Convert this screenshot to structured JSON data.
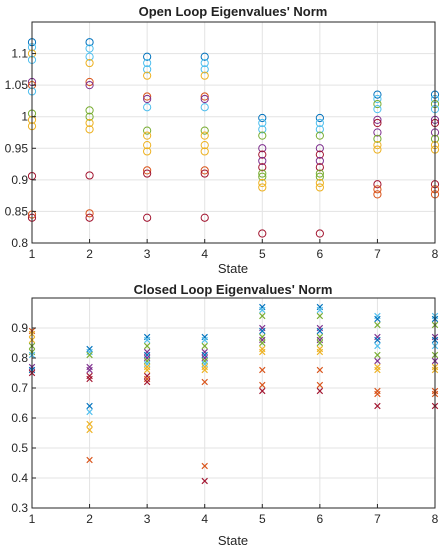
{
  "colors": {
    "blue": "#0072bd",
    "orange": "#d95319",
    "yellow": "#edb120",
    "purple": "#7e2f8e",
    "green": "#77ac30",
    "cyan": "#4dbeee",
    "red": "#a2142f",
    "grid": "#e3e3e3",
    "axis": "#262626"
  },
  "chart_data": [
    {
      "type": "scatter",
      "title": "Open Loop Eigenvalues' Norm",
      "xlabel": "State",
      "ylabel": "",
      "xlim": [
        1,
        8
      ],
      "ylim": [
        0.8,
        1.15
      ],
      "x_ticks": [
        1,
        2,
        3,
        4,
        5,
        6,
        7,
        8
      ],
      "x_tick_labels": [
        "1",
        "2",
        "3",
        "4",
        "5",
        "6",
        "7",
        "8"
      ],
      "y_ticks": [
        0.8,
        0.85,
        0.9,
        0.95,
        1,
        1.05,
        1.1
      ],
      "y_tick_labels": [
        "0.8",
        "0.85",
        "0.9",
        "0.95",
        "1",
        "1.05",
        "1.1"
      ],
      "grid": true,
      "marker": "circle",
      "points": [
        {
          "x": 1,
          "y": 1.118,
          "c": "blue"
        },
        {
          "x": 1,
          "y": 1.11,
          "c": "cyan"
        },
        {
          "x": 1,
          "y": 1.1,
          "c": "yellow"
        },
        {
          "x": 1,
          "y": 1.09,
          "c": "cyan"
        },
        {
          "x": 1,
          "y": 1.055,
          "c": "purple"
        },
        {
          "x": 1,
          "y": 1.05,
          "c": "orange"
        },
        {
          "x": 1,
          "y": 1.04,
          "c": "cyan"
        },
        {
          "x": 1,
          "y": 1.005,
          "c": "green"
        },
        {
          "x": 1,
          "y": 0.995,
          "c": "yellow"
        },
        {
          "x": 1,
          "y": 0.985,
          "c": "yellow"
        },
        {
          "x": 1,
          "y": 0.906,
          "c": "red"
        },
        {
          "x": 1,
          "y": 0.845,
          "c": "orange"
        },
        {
          "x": 1,
          "y": 0.84,
          "c": "red"
        },
        {
          "x": 2,
          "y": 1.118,
          "c": "blue"
        },
        {
          "x": 2,
          "y": 1.108,
          "c": "cyan"
        },
        {
          "x": 2,
          "y": 1.095,
          "c": "cyan"
        },
        {
          "x": 2,
          "y": 1.085,
          "c": "yellow"
        },
        {
          "x": 2,
          "y": 1.055,
          "c": "orange"
        },
        {
          "x": 2,
          "y": 1.05,
          "c": "purple"
        },
        {
          "x": 2,
          "y": 1.01,
          "c": "green"
        },
        {
          "x": 2,
          "y": 1.0,
          "c": "green"
        },
        {
          "x": 2,
          "y": 0.99,
          "c": "yellow"
        },
        {
          "x": 2,
          "y": 0.98,
          "c": "yellow"
        },
        {
          "x": 2,
          "y": 0.907,
          "c": "red"
        },
        {
          "x": 2,
          "y": 0.847,
          "c": "orange"
        },
        {
          "x": 2,
          "y": 0.84,
          "c": "red"
        },
        {
          "x": 3,
          "y": 1.095,
          "c": "blue"
        },
        {
          "x": 3,
          "y": 1.085,
          "c": "cyan"
        },
        {
          "x": 3,
          "y": 1.075,
          "c": "cyan"
        },
        {
          "x": 3,
          "y": 1.065,
          "c": "yellow"
        },
        {
          "x": 3,
          "y": 1.032,
          "c": "orange"
        },
        {
          "x": 3,
          "y": 1.028,
          "c": "purple"
        },
        {
          "x": 3,
          "y": 1.015,
          "c": "cyan"
        },
        {
          "x": 3,
          "y": 0.978,
          "c": "green"
        },
        {
          "x": 3,
          "y": 0.97,
          "c": "yellow"
        },
        {
          "x": 3,
          "y": 0.955,
          "c": "yellow"
        },
        {
          "x": 3,
          "y": 0.945,
          "c": "yellow"
        },
        {
          "x": 3,
          "y": 0.915,
          "c": "orange"
        },
        {
          "x": 3,
          "y": 0.91,
          "c": "red"
        },
        {
          "x": 3,
          "y": 0.84,
          "c": "red"
        },
        {
          "x": 4,
          "y": 1.095,
          "c": "blue"
        },
        {
          "x": 4,
          "y": 1.085,
          "c": "cyan"
        },
        {
          "x": 4,
          "y": 1.075,
          "c": "cyan"
        },
        {
          "x": 4,
          "y": 1.065,
          "c": "yellow"
        },
        {
          "x": 4,
          "y": 1.032,
          "c": "orange"
        },
        {
          "x": 4,
          "y": 1.028,
          "c": "purple"
        },
        {
          "x": 4,
          "y": 1.015,
          "c": "cyan"
        },
        {
          "x": 4,
          "y": 0.978,
          "c": "green"
        },
        {
          "x": 4,
          "y": 0.97,
          "c": "yellow"
        },
        {
          "x": 4,
          "y": 0.955,
          "c": "yellow"
        },
        {
          "x": 4,
          "y": 0.945,
          "c": "yellow"
        },
        {
          "x": 4,
          "y": 0.915,
          "c": "orange"
        },
        {
          "x": 4,
          "y": 0.91,
          "c": "red"
        },
        {
          "x": 4,
          "y": 0.84,
          "c": "red"
        },
        {
          "x": 5,
          "y": 0.998,
          "c": "blue"
        },
        {
          "x": 5,
          "y": 0.99,
          "c": "cyan"
        },
        {
          "x": 5,
          "y": 0.98,
          "c": "cyan"
        },
        {
          "x": 5,
          "y": 0.97,
          "c": "green"
        },
        {
          "x": 5,
          "y": 0.95,
          "c": "purple"
        },
        {
          "x": 5,
          "y": 0.94,
          "c": "red"
        },
        {
          "x": 5,
          "y": 0.93,
          "c": "purple"
        },
        {
          "x": 5,
          "y": 0.92,
          "c": "red"
        },
        {
          "x": 5,
          "y": 0.91,
          "c": "green"
        },
        {
          "x": 5,
          "y": 0.905,
          "c": "green"
        },
        {
          "x": 5,
          "y": 0.895,
          "c": "yellow"
        },
        {
          "x": 5,
          "y": 0.888,
          "c": "yellow"
        },
        {
          "x": 5,
          "y": 0.815,
          "c": "red"
        },
        {
          "x": 6,
          "y": 0.998,
          "c": "blue"
        },
        {
          "x": 6,
          "y": 0.99,
          "c": "cyan"
        },
        {
          "x": 6,
          "y": 0.98,
          "c": "cyan"
        },
        {
          "x": 6,
          "y": 0.97,
          "c": "green"
        },
        {
          "x": 6,
          "y": 0.95,
          "c": "purple"
        },
        {
          "x": 6,
          "y": 0.94,
          "c": "red"
        },
        {
          "x": 6,
          "y": 0.93,
          "c": "purple"
        },
        {
          "x": 6,
          "y": 0.92,
          "c": "red"
        },
        {
          "x": 6,
          "y": 0.91,
          "c": "green"
        },
        {
          "x": 6,
          "y": 0.905,
          "c": "green"
        },
        {
          "x": 6,
          "y": 0.895,
          "c": "yellow"
        },
        {
          "x": 6,
          "y": 0.888,
          "c": "yellow"
        },
        {
          "x": 6,
          "y": 0.815,
          "c": "red"
        },
        {
          "x": 7,
          "y": 1.035,
          "c": "blue"
        },
        {
          "x": 7,
          "y": 1.028,
          "c": "cyan"
        },
        {
          "x": 7,
          "y": 1.02,
          "c": "green"
        },
        {
          "x": 7,
          "y": 1.012,
          "c": "cyan"
        },
        {
          "x": 7,
          "y": 0.995,
          "c": "purple"
        },
        {
          "x": 7,
          "y": 0.99,
          "c": "red"
        },
        {
          "x": 7,
          "y": 0.975,
          "c": "purple"
        },
        {
          "x": 7,
          "y": 0.965,
          "c": "green"
        },
        {
          "x": 7,
          "y": 0.955,
          "c": "yellow"
        },
        {
          "x": 7,
          "y": 0.948,
          "c": "yellow"
        },
        {
          "x": 7,
          "y": 0.893,
          "c": "red"
        },
        {
          "x": 7,
          "y": 0.885,
          "c": "orange"
        },
        {
          "x": 7,
          "y": 0.877,
          "c": "orange"
        },
        {
          "x": 8,
          "y": 1.035,
          "c": "blue"
        },
        {
          "x": 8,
          "y": 1.028,
          "c": "cyan"
        },
        {
          "x": 8,
          "y": 1.02,
          "c": "green"
        },
        {
          "x": 8,
          "y": 1.012,
          "c": "cyan"
        },
        {
          "x": 8,
          "y": 0.995,
          "c": "purple"
        },
        {
          "x": 8,
          "y": 0.99,
          "c": "red"
        },
        {
          "x": 8,
          "y": 0.975,
          "c": "purple"
        },
        {
          "x": 8,
          "y": 0.965,
          "c": "green"
        },
        {
          "x": 8,
          "y": 0.955,
          "c": "yellow"
        },
        {
          "x": 8,
          "y": 0.948,
          "c": "yellow"
        },
        {
          "x": 8,
          "y": 0.893,
          "c": "red"
        },
        {
          "x": 8,
          "y": 0.885,
          "c": "orange"
        },
        {
          "x": 8,
          "y": 0.877,
          "c": "orange"
        }
      ]
    },
    {
      "type": "scatter",
      "title": "Closed Loop Eigenvalues' Norm",
      "xlabel": "State",
      "ylabel": "",
      "xlim": [
        1,
        8
      ],
      "ylim": [
        0.3,
        1.0
      ],
      "x_ticks": [
        1,
        2,
        3,
        4,
        5,
        6,
        7,
        8
      ],
      "x_tick_labels": [
        "1",
        "2",
        "3",
        "4",
        "5",
        "6",
        "7",
        "8"
      ],
      "y_ticks": [
        0.3,
        0.4,
        0.5,
        0.6,
        0.7,
        0.8,
        0.9
      ],
      "y_tick_labels": [
        "0.3",
        "0.4",
        "0.5",
        "0.6",
        "0.7",
        "0.8",
        "0.9"
      ],
      "grid": true,
      "marker": "x",
      "points": [
        {
          "x": 1,
          "y": 0.89,
          "c": "orange"
        },
        {
          "x": 1,
          "y": 0.88,
          "c": "yellow"
        },
        {
          "x": 1,
          "y": 0.86,
          "c": "yellow"
        },
        {
          "x": 1,
          "y": 0.84,
          "c": "green"
        },
        {
          "x": 1,
          "y": 0.82,
          "c": "green"
        },
        {
          "x": 1,
          "y": 0.81,
          "c": "cyan"
        },
        {
          "x": 1,
          "y": 0.77,
          "c": "purple"
        },
        {
          "x": 1,
          "y": 0.76,
          "c": "blue"
        },
        {
          "x": 1,
          "y": 0.75,
          "c": "red"
        },
        {
          "x": 2,
          "y": 0.83,
          "c": "blue"
        },
        {
          "x": 2,
          "y": 0.82,
          "c": "cyan"
        },
        {
          "x": 2,
          "y": 0.81,
          "c": "green"
        },
        {
          "x": 2,
          "y": 0.77,
          "c": "purple"
        },
        {
          "x": 2,
          "y": 0.76,
          "c": "purple"
        },
        {
          "x": 2,
          "y": 0.74,
          "c": "red"
        },
        {
          "x": 2,
          "y": 0.73,
          "c": "red"
        },
        {
          "x": 2,
          "y": 0.64,
          "c": "blue"
        },
        {
          "x": 2,
          "y": 0.62,
          "c": "cyan"
        },
        {
          "x": 2,
          "y": 0.58,
          "c": "yellow"
        },
        {
          "x": 2,
          "y": 0.56,
          "c": "yellow"
        },
        {
          "x": 2,
          "y": 0.46,
          "c": "orange"
        },
        {
          "x": 3,
          "y": 0.87,
          "c": "blue"
        },
        {
          "x": 3,
          "y": 0.86,
          "c": "cyan"
        },
        {
          "x": 3,
          "y": 0.84,
          "c": "green"
        },
        {
          "x": 3,
          "y": 0.82,
          "c": "purple"
        },
        {
          "x": 3,
          "y": 0.81,
          "c": "blue"
        },
        {
          "x": 3,
          "y": 0.8,
          "c": "purple"
        },
        {
          "x": 3,
          "y": 0.79,
          "c": "green"
        },
        {
          "x": 3,
          "y": 0.78,
          "c": "cyan"
        },
        {
          "x": 3,
          "y": 0.77,
          "c": "yellow"
        },
        {
          "x": 3,
          "y": 0.76,
          "c": "yellow"
        },
        {
          "x": 3,
          "y": 0.74,
          "c": "red"
        },
        {
          "x": 3,
          "y": 0.73,
          "c": "orange"
        },
        {
          "x": 3,
          "y": 0.72,
          "c": "red"
        },
        {
          "x": 4,
          "y": 0.87,
          "c": "blue"
        },
        {
          "x": 4,
          "y": 0.86,
          "c": "cyan"
        },
        {
          "x": 4,
          "y": 0.84,
          "c": "green"
        },
        {
          "x": 4,
          "y": 0.82,
          "c": "purple"
        },
        {
          "x": 4,
          "y": 0.81,
          "c": "blue"
        },
        {
          "x": 4,
          "y": 0.8,
          "c": "purple"
        },
        {
          "x": 4,
          "y": 0.79,
          "c": "green"
        },
        {
          "x": 4,
          "y": 0.78,
          "c": "cyan"
        },
        {
          "x": 4,
          "y": 0.77,
          "c": "yellow"
        },
        {
          "x": 4,
          "y": 0.76,
          "c": "yellow"
        },
        {
          "x": 4,
          "y": 0.72,
          "c": "orange"
        },
        {
          "x": 4,
          "y": 0.44,
          "c": "orange"
        },
        {
          "x": 4,
          "y": 0.39,
          "c": "red"
        },
        {
          "x": 5,
          "y": 0.97,
          "c": "blue"
        },
        {
          "x": 5,
          "y": 0.96,
          "c": "cyan"
        },
        {
          "x": 5,
          "y": 0.94,
          "c": "green"
        },
        {
          "x": 5,
          "y": 0.9,
          "c": "purple"
        },
        {
          "x": 5,
          "y": 0.89,
          "c": "blue"
        },
        {
          "x": 5,
          "y": 0.87,
          "c": "green"
        },
        {
          "x": 5,
          "y": 0.86,
          "c": "purple"
        },
        {
          "x": 5,
          "y": 0.85,
          "c": "green"
        },
        {
          "x": 5,
          "y": 0.83,
          "c": "yellow"
        },
        {
          "x": 5,
          "y": 0.82,
          "c": "yellow"
        },
        {
          "x": 5,
          "y": 0.76,
          "c": "orange"
        },
        {
          "x": 5,
          "y": 0.71,
          "c": "orange"
        },
        {
          "x": 5,
          "y": 0.69,
          "c": "red"
        },
        {
          "x": 6,
          "y": 0.97,
          "c": "blue"
        },
        {
          "x": 6,
          "y": 0.96,
          "c": "cyan"
        },
        {
          "x": 6,
          "y": 0.94,
          "c": "green"
        },
        {
          "x": 6,
          "y": 0.9,
          "c": "purple"
        },
        {
          "x": 6,
          "y": 0.89,
          "c": "blue"
        },
        {
          "x": 6,
          "y": 0.87,
          "c": "green"
        },
        {
          "x": 6,
          "y": 0.86,
          "c": "purple"
        },
        {
          "x": 6,
          "y": 0.85,
          "c": "green"
        },
        {
          "x": 6,
          "y": 0.83,
          "c": "yellow"
        },
        {
          "x": 6,
          "y": 0.82,
          "c": "yellow"
        },
        {
          "x": 6,
          "y": 0.76,
          "c": "orange"
        },
        {
          "x": 6,
          "y": 0.71,
          "c": "orange"
        },
        {
          "x": 6,
          "y": 0.69,
          "c": "red"
        },
        {
          "x": 7,
          "y": 0.94,
          "c": "cyan"
        },
        {
          "x": 7,
          "y": 0.93,
          "c": "blue"
        },
        {
          "x": 7,
          "y": 0.91,
          "c": "green"
        },
        {
          "x": 7,
          "y": 0.87,
          "c": "purple"
        },
        {
          "x": 7,
          "y": 0.86,
          "c": "blue"
        },
        {
          "x": 7,
          "y": 0.84,
          "c": "cyan"
        },
        {
          "x": 7,
          "y": 0.81,
          "c": "green"
        },
        {
          "x": 7,
          "y": 0.79,
          "c": "purple"
        },
        {
          "x": 7,
          "y": 0.77,
          "c": "yellow"
        },
        {
          "x": 7,
          "y": 0.76,
          "c": "yellow"
        },
        {
          "x": 7,
          "y": 0.69,
          "c": "orange"
        },
        {
          "x": 7,
          "y": 0.68,
          "c": "orange"
        },
        {
          "x": 7,
          "y": 0.64,
          "c": "red"
        },
        {
          "x": 8,
          "y": 0.94,
          "c": "cyan"
        },
        {
          "x": 8,
          "y": 0.93,
          "c": "blue"
        },
        {
          "x": 8,
          "y": 0.91,
          "c": "green"
        },
        {
          "x": 8,
          "y": 0.87,
          "c": "purple"
        },
        {
          "x": 8,
          "y": 0.86,
          "c": "blue"
        },
        {
          "x": 8,
          "y": 0.84,
          "c": "cyan"
        },
        {
          "x": 8,
          "y": 0.81,
          "c": "green"
        },
        {
          "x": 8,
          "y": 0.79,
          "c": "purple"
        },
        {
          "x": 8,
          "y": 0.77,
          "c": "yellow"
        },
        {
          "x": 8,
          "y": 0.76,
          "c": "yellow"
        },
        {
          "x": 8,
          "y": 0.69,
          "c": "orange"
        },
        {
          "x": 8,
          "y": 0.68,
          "c": "orange"
        },
        {
          "x": 8,
          "y": 0.64,
          "c": "red"
        }
      ]
    }
  ]
}
